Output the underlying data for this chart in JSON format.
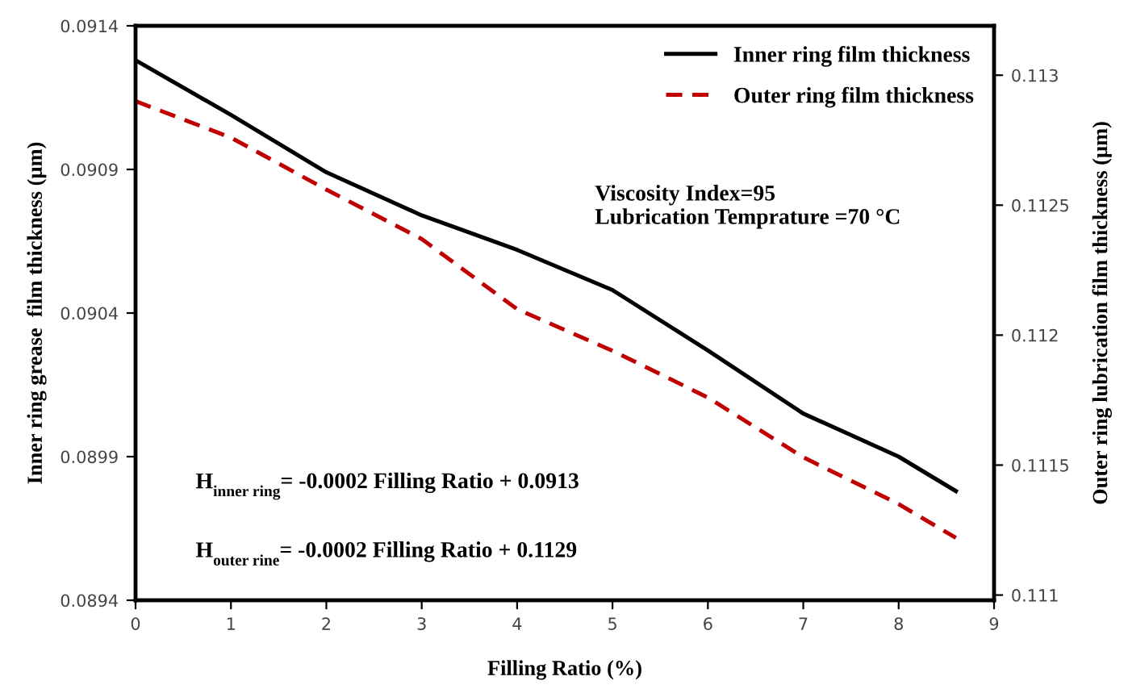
{
  "chart_data": {
    "type": "line",
    "xlabel": "Filling Ratio (%)",
    "ylabel": "Inner ring grease  film thickness (µm)",
    "y2label": "Outer ring lubrication film thickness (µm)",
    "x": [
      0,
      1,
      2,
      3,
      4,
      5,
      6,
      7,
      8,
      8.6
    ],
    "series": [
      {
        "name": "Inner ring film thickness",
        "color": "#000000",
        "line_style": "solid",
        "values": [
          0.09128,
          0.09109,
          0.09089,
          0.09074,
          0.09062,
          0.09048,
          0.09027,
          0.09005,
          0.0899,
          0.08978
        ]
      },
      {
        "name": "Outer ring film thickness",
        "color": "#c00000",
        "line_style": "dashed",
        "axis": "y2",
        "values": [
          0.1129,
          0.11276,
          0.11256,
          0.11237,
          0.1121,
          0.11194,
          0.11176,
          0.11153,
          0.11135,
          0.11122
        ]
      }
    ],
    "xlim": [
      0,
      9
    ],
    "xticks": [
      0,
      1,
      2,
      3,
      4,
      5,
      6,
      7,
      8,
      9
    ],
    "ylim": [
      0.0894,
      0.0914
    ],
    "yticks": [
      0.0894,
      0.0899,
      0.0904,
      0.0909,
      0.0914
    ],
    "y2lim": [
      0.11098,
      0.11319
    ],
    "y2ticks": [
      0.111,
      0.1115,
      0.112,
      0.1125,
      0.113
    ],
    "legend": "top right",
    "grid": false,
    "marker": "none",
    "annotations": [
      "Viscosity Index=95\nLubrication Temprature =70 °C",
      "H$_{inner ring}$= -0.0002 Filling Ratio + 0.0913",
      "H$_{outer rine}$= -0.0002 Filling Ratio + 0.1129"
    ]
  }
}
